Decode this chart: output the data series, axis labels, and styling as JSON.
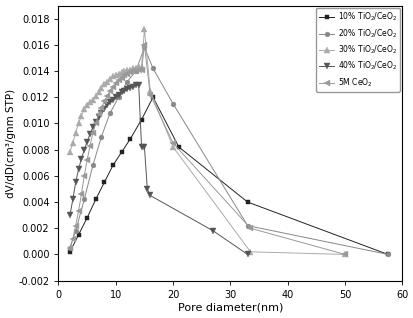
{
  "title": "",
  "xlabel": "Pore diameter(nm)",
  "ylabel": "dV/dD(cm³/gnm STP)",
  "xlim": [
    0,
    60
  ],
  "ylim": [
    -0.002,
    0.019
  ],
  "background_color": "#ffffff",
  "series": [
    {
      "label": "10% TiO$_2$/CeO$_2$",
      "color": "#222222",
      "marker": "s",
      "markersize": 3,
      "x": [
        2.0,
        3.5,
        5.0,
        6.5,
        8.0,
        9.5,
        11.0,
        12.5,
        14.5,
        16.5,
        21.0,
        33.0,
        57.5
      ],
      "y": [
        0.0002,
        0.0015,
        0.0028,
        0.0042,
        0.0055,
        0.0068,
        0.0078,
        0.0088,
        0.0103,
        0.012,
        0.0082,
        0.004,
        0.0
      ]
    },
    {
      "label": "20% TiO$_2$/CeO$_2$",
      "color": "#888888",
      "marker": "o",
      "markersize": 3.5,
      "x": [
        2.0,
        3.0,
        4.5,
        6.0,
        7.5,
        9.0,
        10.5,
        12.0,
        13.5,
        15.0,
        16.5,
        20.0,
        33.0,
        57.5
      ],
      "y": [
        0.0005,
        0.0018,
        0.0042,
        0.0068,
        0.009,
        0.0108,
        0.012,
        0.0132,
        0.014,
        0.0158,
        0.0142,
        0.0115,
        0.0022,
        0.0
      ]
    },
    {
      "label": "30% TiO$_2$/CeO$_2$",
      "color": "#aaaaaa",
      "marker": "^",
      "markersize": 4,
      "x": [
        2.0,
        2.5,
        3.0,
        3.5,
        4.0,
        4.5,
        5.0,
        5.5,
        6.0,
        6.5,
        7.0,
        7.5,
        8.0,
        8.5,
        9.0,
        9.5,
        10.0,
        10.5,
        11.0,
        11.5,
        12.0,
        12.5,
        13.0,
        13.5,
        14.0,
        14.5,
        15.0,
        16.0,
        20.0,
        33.5,
        50.0
      ],
      "y": [
        0.0078,
        0.0085,
        0.0093,
        0.01,
        0.0106,
        0.0111,
        0.0114,
        0.0116,
        0.0118,
        0.0121,
        0.0124,
        0.0127,
        0.013,
        0.0132,
        0.0134,
        0.0136,
        0.0137,
        0.0138,
        0.0139,
        0.014,
        0.0141,
        0.0141,
        0.0142,
        0.0142,
        0.0143,
        0.0143,
        0.0172,
        0.0125,
        0.0082,
        0.0002,
        0.0
      ]
    },
    {
      "label": "40% TiO$_2$/CeO$_2$",
      "color": "#555555",
      "marker": "v",
      "markersize": 4,
      "x": [
        2.0,
        2.5,
        3.0,
        3.5,
        4.0,
        4.5,
        5.0,
        5.5,
        6.0,
        6.5,
        7.0,
        7.5,
        8.0,
        8.5,
        9.0,
        9.5,
        10.0,
        10.5,
        11.0,
        11.5,
        12.0,
        12.5,
        13.0,
        13.5,
        14.0,
        14.5,
        15.0,
        15.5,
        16.0,
        27.0,
        33.0
      ],
      "y": [
        0.003,
        0.0042,
        0.0055,
        0.0065,
        0.0073,
        0.008,
        0.0086,
        0.0092,
        0.0097,
        0.0101,
        0.0105,
        0.0108,
        0.0111,
        0.0114,
        0.0116,
        0.0118,
        0.012,
        0.0122,
        0.0124,
        0.0125,
        0.0126,
        0.0127,
        0.0128,
        0.0129,
        0.0129,
        0.0082,
        0.0082,
        0.005,
        0.0045,
        0.0018,
        0.0
      ]
    },
    {
      "label": "5M CeO$_2$",
      "color": "#999999",
      "marker": "<",
      "markersize": 4,
      "x": [
        2.0,
        2.5,
        3.0,
        3.5,
        4.0,
        4.5,
        5.0,
        5.5,
        6.0,
        6.5,
        7.0,
        7.5,
        8.0,
        8.5,
        9.0,
        9.5,
        10.0,
        10.5,
        11.0,
        11.5,
        12.0,
        12.5,
        13.0,
        13.5,
        14.0,
        14.5,
        15.0,
        16.0,
        20.0,
        33.5,
        50.0
      ],
      "y": [
        0.0005,
        0.0012,
        0.0022,
        0.0033,
        0.0046,
        0.006,
        0.0072,
        0.0083,
        0.0093,
        0.01,
        0.0107,
        0.0112,
        0.0117,
        0.0121,
        0.0125,
        0.0128,
        0.0131,
        0.0133,
        0.0135,
        0.0137,
        0.0138,
        0.0139,
        0.014,
        0.014,
        0.0141,
        0.0141,
        0.016,
        0.0122,
        0.0085,
        0.002,
        0.0
      ]
    }
  ],
  "yticks": [
    -0.002,
    0.0,
    0.002,
    0.004,
    0.006,
    0.008,
    0.01,
    0.012,
    0.014,
    0.016,
    0.018
  ],
  "xticks": [
    0,
    10,
    20,
    30,
    40,
    50,
    60
  ]
}
